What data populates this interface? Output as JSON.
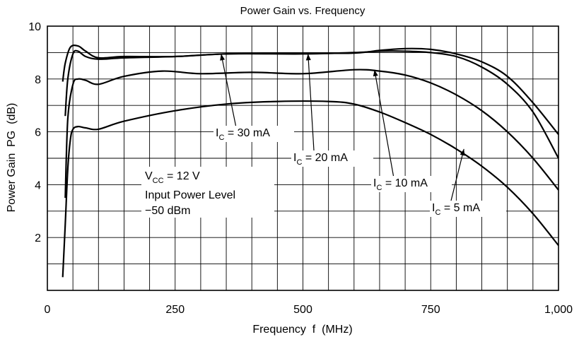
{
  "chart_data": {
    "type": "line",
    "title": "Power Gain vs. Frequency",
    "xlabel": "Frequency  f  (MHz)",
    "ylabel": "Power Gain  PG  (dB)",
    "xlim": [
      0,
      1000
    ],
    "ylim": [
      0,
      10
    ],
    "x_tick_labels": [
      "0",
      "250",
      "500",
      "750",
      "1,000"
    ],
    "y_tick_labels": [
      "2",
      "4",
      "6",
      "8",
      "10"
    ],
    "grid": true,
    "series": [
      {
        "name": "I_C = 30 mA",
        "x": [
          30,
          35,
          45,
          60,
          75,
          100,
          150,
          250,
          350,
          500,
          600,
          650,
          700,
          750,
          800,
          850,
          900,
          950,
          1000
        ],
        "y": [
          7.9,
          8.6,
          9.2,
          9.25,
          9.05,
          8.8,
          8.85,
          8.85,
          8.95,
          8.98,
          8.98,
          9.08,
          9.15,
          9.12,
          8.95,
          8.65,
          8.1,
          7.1,
          5.9
        ]
      },
      {
        "name": "I_C = 20 mA",
        "x": [
          35,
          40,
          50,
          60,
          75,
          100,
          150,
          250,
          350,
          500,
          600,
          650,
          700,
          750,
          800,
          850,
          900,
          950,
          1000
        ],
        "y": [
          6.6,
          8.0,
          8.95,
          9.05,
          8.85,
          8.75,
          8.8,
          8.85,
          8.95,
          8.95,
          9.0,
          9.05,
          9.05,
          9.0,
          8.85,
          8.45,
          7.8,
          6.75,
          5.0
        ]
      },
      {
        "name": "I_C = 10 mA",
        "x": [
          35,
          40,
          50,
          60,
          75,
          100,
          150,
          225,
          300,
          400,
          500,
          600,
          650,
          700,
          750,
          800,
          850,
          900,
          950,
          1000
        ],
        "y": [
          3.5,
          6.5,
          7.8,
          8.0,
          7.95,
          7.8,
          8.1,
          8.3,
          8.2,
          8.25,
          8.2,
          8.35,
          8.3,
          8.15,
          7.85,
          7.4,
          6.8,
          6.0,
          5.0,
          3.8
        ]
      },
      {
        "name": "I_C = 5 mA",
        "x": [
          30,
          35,
          40,
          45,
          50,
          60,
          75,
          100,
          150,
          250,
          350,
          450,
          550,
          600,
          650,
          700,
          750,
          800,
          850,
          900,
          950,
          1000
        ],
        "y": [
          0.5,
          2.5,
          4.6,
          5.7,
          6.1,
          6.2,
          6.15,
          6.1,
          6.4,
          6.8,
          7.05,
          7.15,
          7.15,
          7.05,
          6.75,
          6.35,
          5.9,
          5.35,
          4.7,
          3.9,
          2.9,
          1.7
        ]
      }
    ],
    "annotations": [
      {
        "base": "I",
        "sub": "C",
        "text": " = 30 mA",
        "arrow_to": [
          340,
          8.95
        ]
      },
      {
        "base": "I",
        "sub": "C",
        "text": " = 20 mA",
        "arrow_to": [
          510,
          8.95
        ]
      },
      {
        "base": "I",
        "sub": "C",
        "text": " = 10 mA",
        "arrow_to": [
          640,
          8.35
        ]
      },
      {
        "base": "I",
        "sub": "C",
        "text": " = 5 mA",
        "arrow_to": [
          815,
          5.35
        ]
      }
    ],
    "condition": {
      "line1_base": "V",
      "line1_sub": "CC",
      "line1_rest": " = 12 V",
      "line2": "Input Power Level",
      "line3": "−50 dBm"
    }
  }
}
